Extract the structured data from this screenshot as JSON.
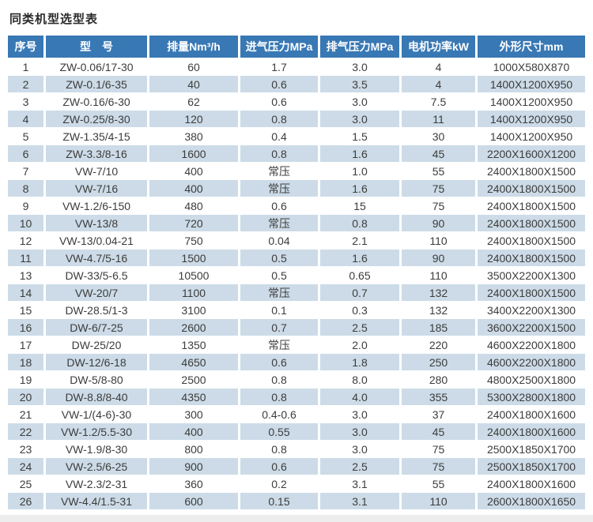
{
  "title": "同类机型选型表",
  "colors": {
    "header_bg": "#3878b4",
    "header_text": "#ffffff",
    "stripe_bg": "#ccdbe7",
    "body_text": "#3c3c3c"
  },
  "table": {
    "headers": [
      "序号",
      "型　号",
      "排量Nm³/h",
      "进气压力MPa",
      "排气压力MPa",
      "电机功率kW",
      "外形尺寸mm"
    ],
    "rows": [
      [
        "1",
        "ZW-0.06/17-30",
        "60",
        "1.7",
        "3.0",
        "4",
        "1000X580X870"
      ],
      [
        "2",
        "ZW-0.1/6-35",
        "40",
        "0.6",
        "3.5",
        "4",
        "1400X1200X950"
      ],
      [
        "3",
        "ZW-0.16/6-30",
        "62",
        "0.6",
        "3.0",
        "7.5",
        "1400X1200X950"
      ],
      [
        "4",
        "ZW-0.25/8-30",
        "120",
        "0.8",
        "3.0",
        "11",
        "1400X1200X950"
      ],
      [
        "5",
        "ZW-1.35/4-15",
        "380",
        "0.4",
        "1.5",
        "30",
        "1400X1200X950"
      ],
      [
        "6",
        "ZW-3.3/8-16",
        "1600",
        "0.8",
        "1.6",
        "45",
        "2200X1600X1200"
      ],
      [
        "7",
        "VW-7/10",
        "400",
        "常压",
        "1.0",
        "55",
        "2400X1800X1500"
      ],
      [
        "8",
        "VW-7/16",
        "400",
        "常压",
        "1.6",
        "75",
        "2400X1800X1500"
      ],
      [
        "9",
        "VW-1.2/6-150",
        "480",
        "0.6",
        "15",
        "75",
        "2400X1800X1500"
      ],
      [
        "10",
        "VW-13/8",
        "720",
        "常压",
        "0.8",
        "90",
        "2400X1800X1500"
      ],
      [
        "12",
        "VW-13/0.04-21",
        "750",
        "0.04",
        "2.1",
        "110",
        "2400X1800X1500"
      ],
      [
        "11",
        "VW-4.7/5-16",
        "1500",
        "0.5",
        "1.6",
        "90",
        "2400X1800X1500"
      ],
      [
        "13",
        "DW-33/5-6.5",
        "10500",
        "0.5",
        "0.65",
        "110",
        "3500X2200X1300"
      ],
      [
        "14",
        "VW-20/7",
        "1100",
        "常压",
        "0.7",
        "132",
        "2400X1800X1500"
      ],
      [
        "15",
        "DW-28.5/1-3",
        "3100",
        "0.1",
        "0.3",
        "132",
        "3400X2200X1300"
      ],
      [
        "16",
        "DW-6/7-25",
        "2600",
        "0.7",
        "2.5",
        "185",
        "3600X2200X1500"
      ],
      [
        "17",
        "DW-25/20",
        "1350",
        "常压",
        "2.0",
        "220",
        "4600X2200X1800"
      ],
      [
        "18",
        "DW-12/6-18",
        "4650",
        "0.6",
        "1.8",
        "250",
        "4600X2200X1800"
      ],
      [
        "19",
        "DW-5/8-80",
        "2500",
        "0.8",
        "8.0",
        "280",
        "4800X2500X1800"
      ],
      [
        "20",
        "DW-8.8/8-40",
        "4350",
        "0.8",
        "4.0",
        "355",
        "5300X2800X1800"
      ],
      [
        "21",
        "VW-1/(4-6)-30",
        "300",
        "0.4-0.6",
        "3.0",
        "37",
        "2400X1800X1600"
      ],
      [
        "22",
        "VW-1.2/5.5-30",
        "400",
        "0.55",
        "3.0",
        "45",
        "2400X1800X1600"
      ],
      [
        "23",
        "VW-1.9/8-30",
        "800",
        "0.8",
        "3.0",
        "75",
        "2500X1850X1700"
      ],
      [
        "24",
        "VW-2.5/6-25",
        "900",
        "0.6",
        "2.5",
        "75",
        "2500X1850X1700"
      ],
      [
        "25",
        "VW-2.3/2-31",
        "360",
        "0.2",
        "3.1",
        "55",
        "2400X1800X1600"
      ],
      [
        "26",
        "VW-4.4/1.5-31",
        "600",
        "0.15",
        "3.1",
        "110",
        "2600X1800X1650"
      ]
    ]
  }
}
